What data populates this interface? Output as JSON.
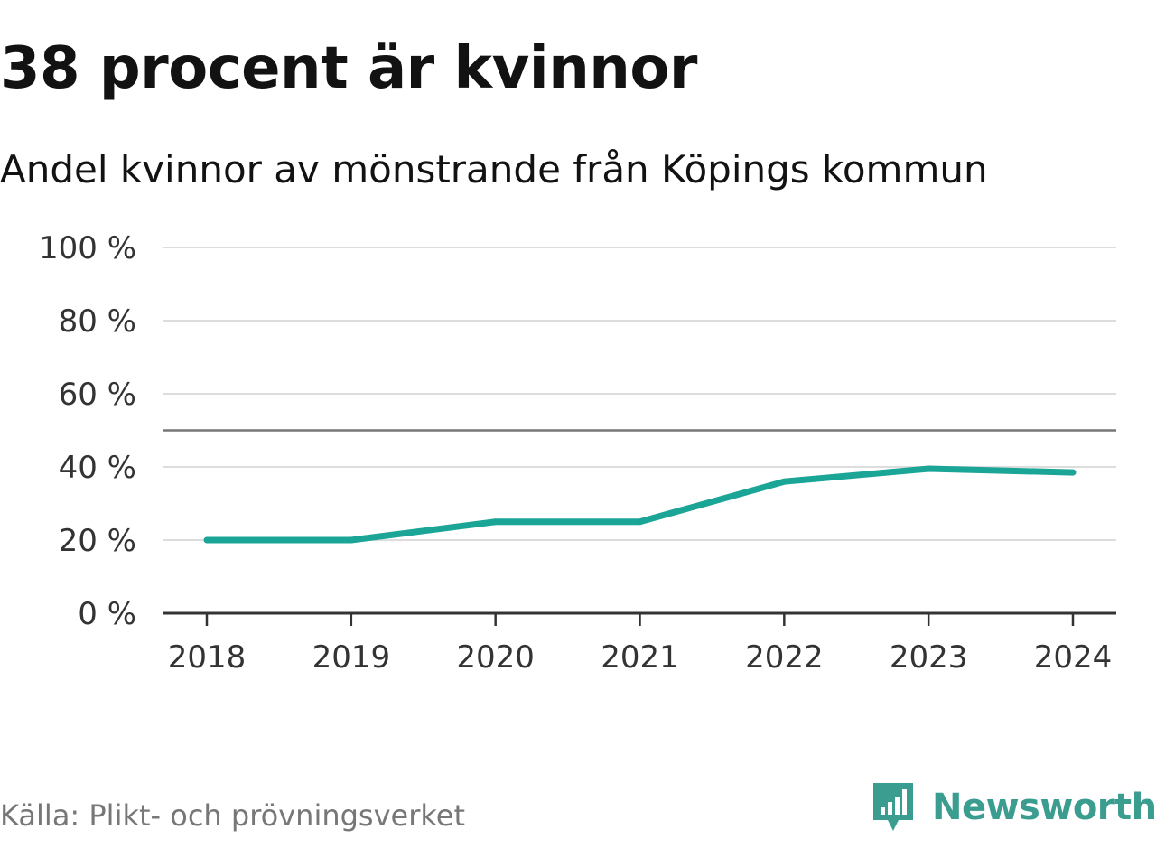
{
  "title": "38 procent är kvinnor",
  "subtitle": "Andel kvinnor av mönstrande från Köpings kommun",
  "source": "Källa: Plikt- och prövningsverket",
  "brand": {
    "name": "Newsworthy",
    "icon": "newsworthy-logo-icon",
    "color": "#3a9d8f"
  },
  "colors": {
    "line": "#1aa597",
    "grid": "#dddddd",
    "axis": "#333333",
    "reference": "#777777"
  },
  "chart_data": {
    "type": "line",
    "x": [
      "2018",
      "2019",
      "2020",
      "2021",
      "2022",
      "2023",
      "2024"
    ],
    "series": [
      {
        "name": "Andel kvinnor",
        "values": [
          20,
          20,
          25,
          25,
          36,
          39.5,
          38.5
        ]
      }
    ],
    "reference_line": 50,
    "ylim": [
      0,
      100
    ],
    "yticks": [
      0,
      20,
      40,
      60,
      80,
      100
    ],
    "ytick_labels": [
      "0 %",
      "20 %",
      "40 %",
      "60 %",
      "80 %",
      "100 %"
    ],
    "grid": true,
    "xlabel": "",
    "ylabel": ""
  }
}
